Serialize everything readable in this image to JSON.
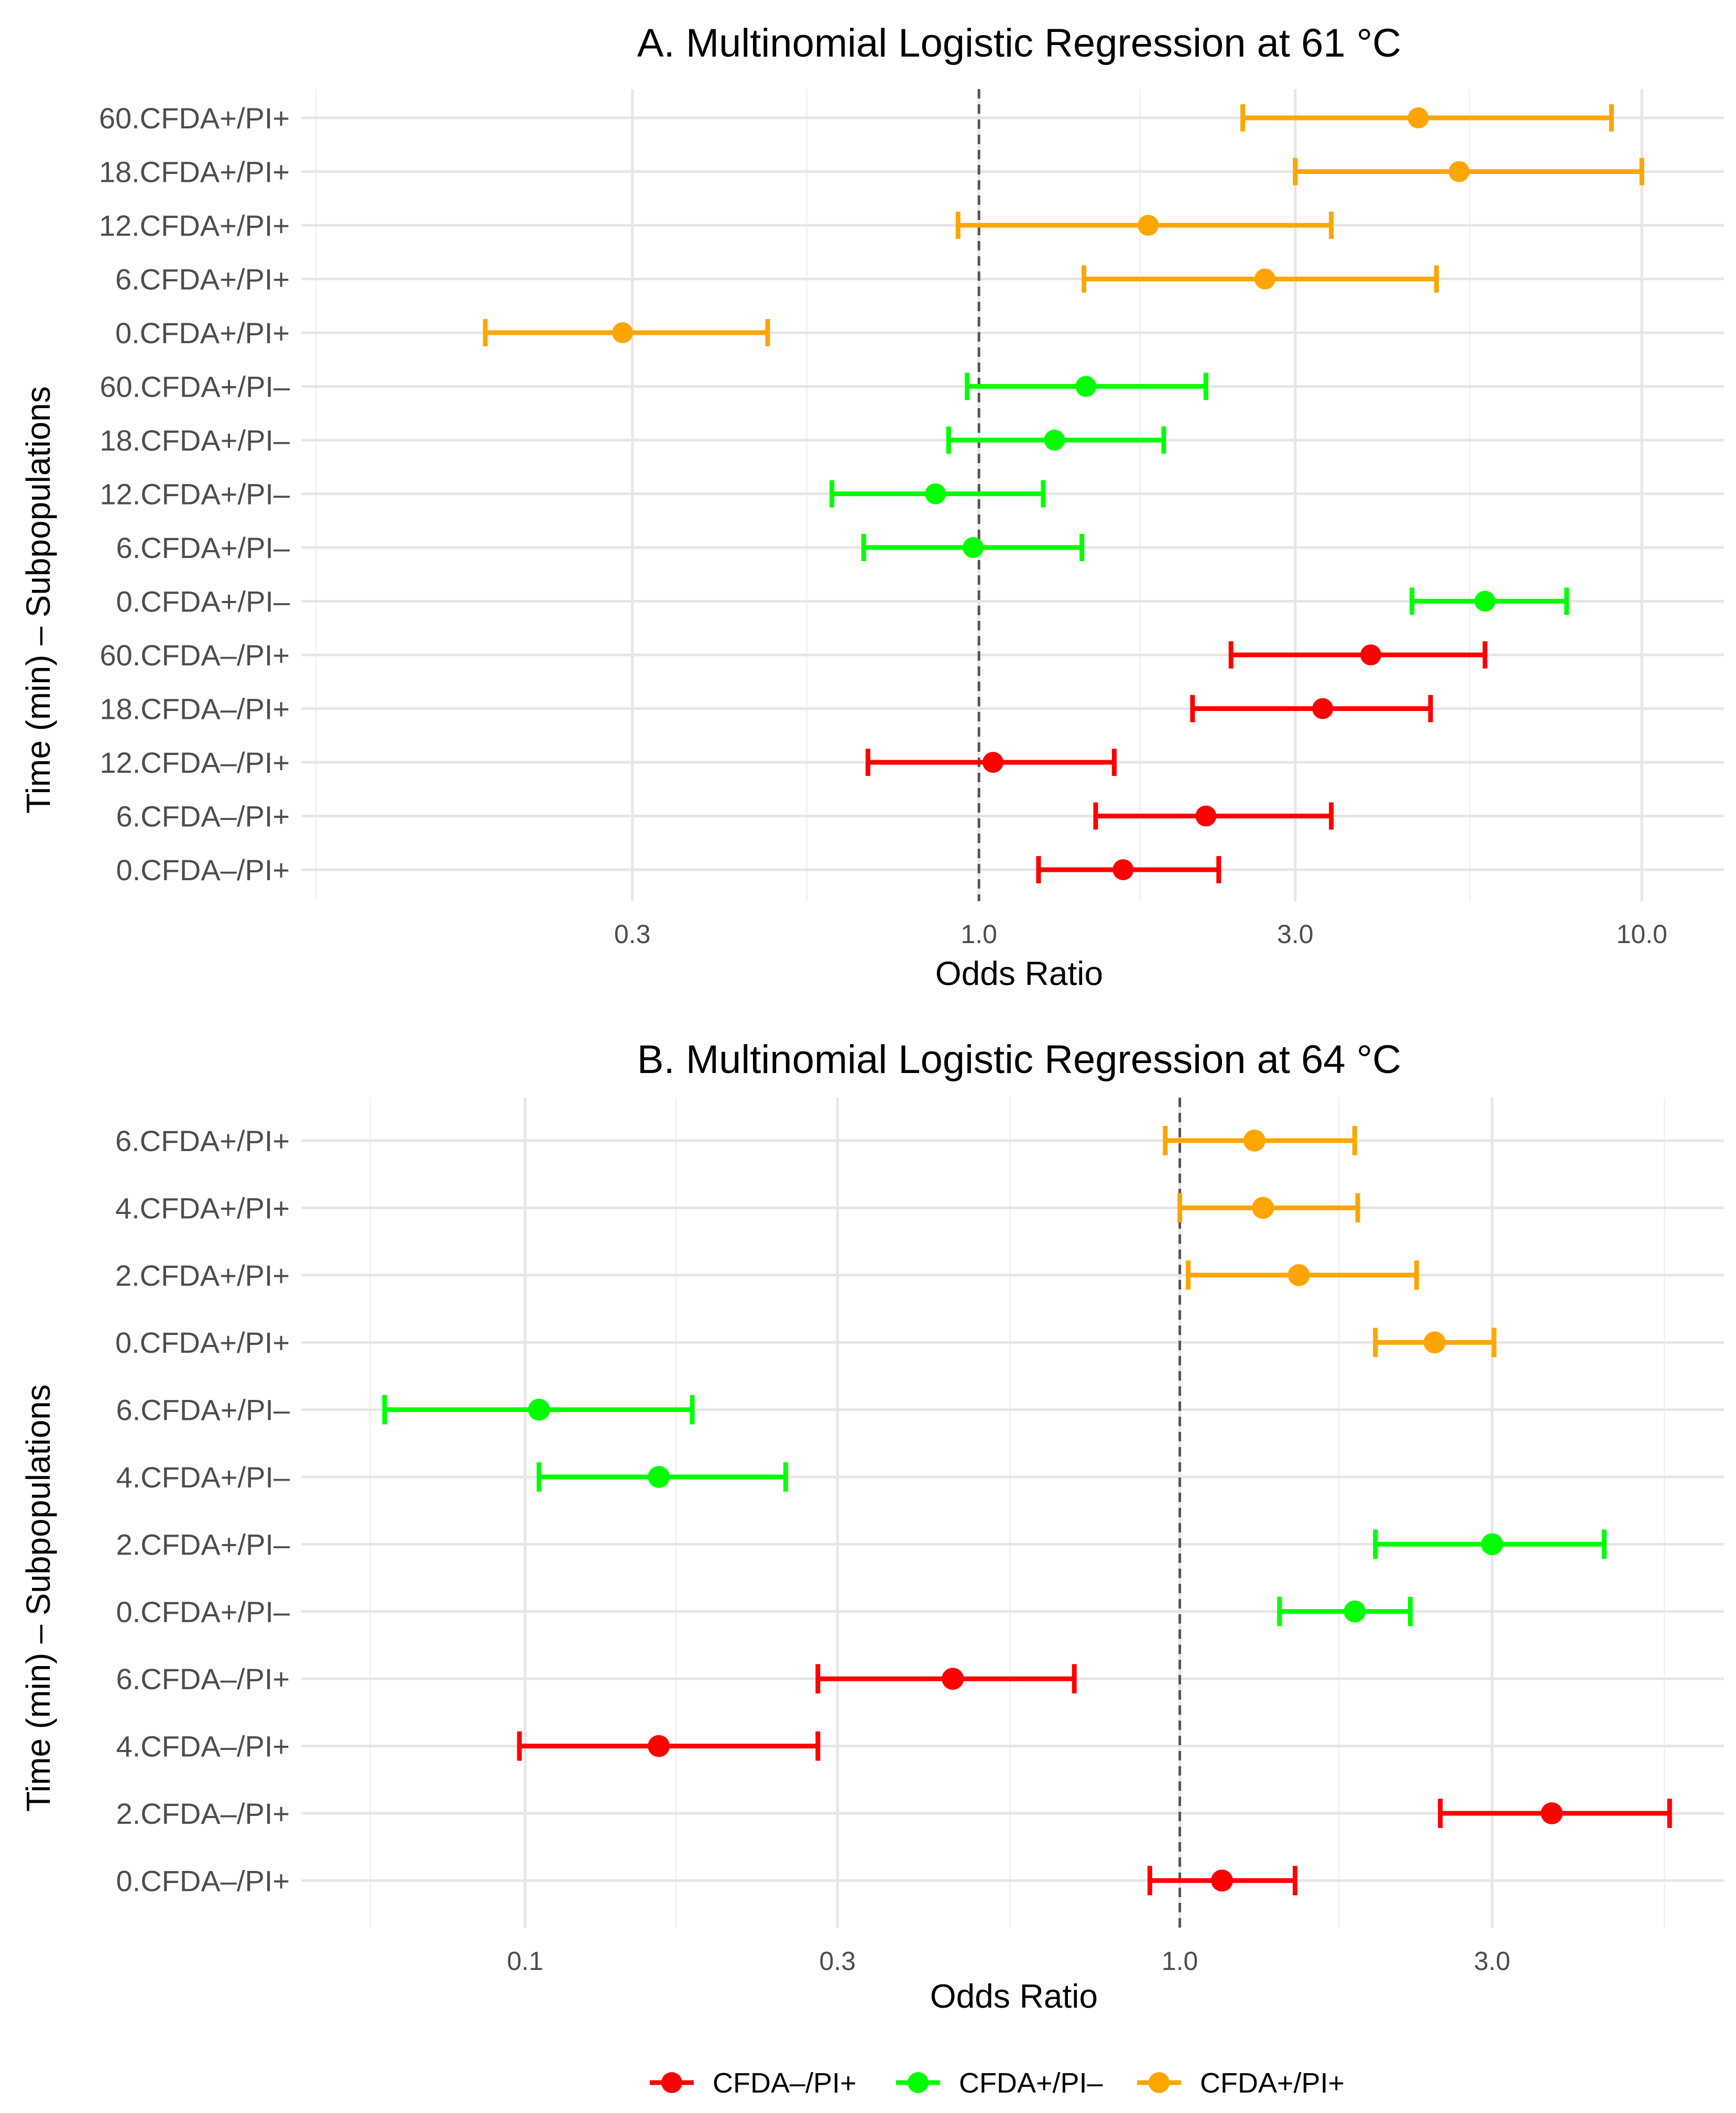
{
  "colors": {
    "CFDA-/PI+": "#ff0000",
    "CFDA+/PI-": "#00ff00",
    "CFDA+/PI+": "#ffa500",
    "grid_major": "#e6e6e6",
    "grid_minor": "#f2f2f2",
    "ref_line": "#555555"
  },
  "legend": {
    "items": [
      {
        "label": "CFDA–/PI+",
        "group": "CFDA-/PI+"
      },
      {
        "label": "CFDA+/PI–",
        "group": "CFDA+/PI-"
      },
      {
        "label": "CFDA+/PI+",
        "group": "CFDA+/PI+"
      }
    ]
  },
  "chart_data": [
    {
      "type": "forest",
      "title": "A.  Multinomial Logistic Regression at 61 °C",
      "xlabel": "Odds Ratio",
      "ylabel": "Time (min) – Subpopulations",
      "x_scale": "log10",
      "xlim": [
        0.095,
        13.3
      ],
      "xticks": [
        0.3,
        1.0,
        3.0,
        10.0
      ],
      "xtick_labels": [
        "0.3",
        "1.0",
        "3.0",
        "10.0"
      ],
      "minor_ticks": [
        0.1,
        0.55,
        1.75,
        5.5
      ],
      "reference_line": 1.0,
      "rows": [
        {
          "label": "60.CFDA+/PI+",
          "group": "CFDA+/PI+",
          "or": 4.6,
          "lo": 2.5,
          "hi": 9.0
        },
        {
          "label": "18.CFDA+/PI+",
          "group": "CFDA+/PI+",
          "or": 5.3,
          "lo": 3.0,
          "hi": 10.0
        },
        {
          "label": "12.CFDA+/PI+",
          "group": "CFDA+/PI+",
          "or": 1.8,
          "lo": 0.93,
          "hi": 3.4
        },
        {
          "label": "6.CFDA+/PI+",
          "group": "CFDA+/PI+",
          "or": 2.7,
          "lo": 1.44,
          "hi": 4.9
        },
        {
          "label": "0.CFDA+/PI+",
          "group": "CFDA+/PI+",
          "or": 0.29,
          "lo": 0.18,
          "hi": 0.48
        },
        {
          "label": "60.CFDA+/PI–",
          "group": "CFDA+/PI-",
          "or": 1.45,
          "lo": 0.96,
          "hi": 2.2
        },
        {
          "label": "18.CFDA+/PI–",
          "group": "CFDA+/PI-",
          "or": 1.3,
          "lo": 0.9,
          "hi": 1.9
        },
        {
          "label": "12.CFDA+/PI–",
          "group": "CFDA+/PI-",
          "or": 0.86,
          "lo": 0.6,
          "hi": 1.25
        },
        {
          "label": "6.CFDA+/PI–",
          "group": "CFDA+/PI-",
          "or": 0.98,
          "lo": 0.67,
          "hi": 1.43
        },
        {
          "label": "0.CFDA+/PI–",
          "group": "CFDA+/PI-",
          "or": 5.8,
          "lo": 4.5,
          "hi": 7.7
        },
        {
          "label": "60.CFDA–/PI+",
          "group": "CFDA-/PI+",
          "or": 3.9,
          "lo": 2.4,
          "hi": 5.8
        },
        {
          "label": "18.CFDA–/PI+",
          "group": "CFDA-/PI+",
          "or": 3.3,
          "lo": 2.1,
          "hi": 4.8
        },
        {
          "label": "12.CFDA–/PI+",
          "group": "CFDA-/PI+",
          "or": 1.05,
          "lo": 0.68,
          "hi": 1.6
        },
        {
          "label": "6.CFDA–/PI+",
          "group": "CFDA-/PI+",
          "or": 2.2,
          "lo": 1.5,
          "hi": 3.4
        },
        {
          "label": "0.CFDA–/PI+",
          "group": "CFDA-/PI+",
          "or": 1.65,
          "lo": 1.23,
          "hi": 2.3
        }
      ]
    },
    {
      "type": "forest",
      "title": "B.  Multinomial Logistic Regression at 64 °C",
      "xlabel": "Odds Ratio",
      "ylabel": "Time (min) – Subpopulations",
      "x_scale": "log10",
      "xlim": [
        0.0455,
        6.78
      ],
      "xticks": [
        0.1,
        0.3,
        1.0,
        3.0
      ],
      "xtick_labels": [
        "0.1",
        "0.3",
        "1.0",
        "3.0"
      ],
      "minor_ticks": [
        0.058,
        0.17,
        0.55,
        1.75,
        5.5
      ],
      "reference_line": 1.0,
      "rows": [
        {
          "label": "6.CFDA+/PI+",
          "group": "CFDA+/PI+",
          "or": 1.3,
          "lo": 0.95,
          "hi": 1.85
        },
        {
          "label": "4.CFDA+/PI+",
          "group": "CFDA+/PI+",
          "or": 1.34,
          "lo": 1.0,
          "hi": 1.87
        },
        {
          "label": "2.CFDA+/PI+",
          "group": "CFDA+/PI+",
          "or": 1.52,
          "lo": 1.03,
          "hi": 2.3
        },
        {
          "label": "0.CFDA+/PI+",
          "group": "CFDA+/PI+",
          "or": 2.45,
          "lo": 1.99,
          "hi": 3.02
        },
        {
          "label": "6.CFDA+/PI–",
          "group": "CFDA+/PI-",
          "or": 0.105,
          "lo": 0.061,
          "hi": 0.18
        },
        {
          "label": "4.CFDA+/PI–",
          "group": "CFDA+/PI-",
          "or": 0.16,
          "lo": 0.105,
          "hi": 0.25
        },
        {
          "label": "2.CFDA+/PI–",
          "group": "CFDA+/PI-",
          "or": 3.0,
          "lo": 1.99,
          "hi": 4.45
        },
        {
          "label": "0.CFDA+/PI–",
          "group": "CFDA+/PI-",
          "or": 1.85,
          "lo": 1.42,
          "hi": 2.25
        },
        {
          "label": "6.CFDA–/PI+",
          "group": "CFDA-/PI+",
          "or": 0.45,
          "lo": 0.28,
          "hi": 0.69
        },
        {
          "label": "4.CFDA–/PI+",
          "group": "CFDA-/PI+",
          "or": 0.16,
          "lo": 0.098,
          "hi": 0.28
        },
        {
          "label": "2.CFDA–/PI+",
          "group": "CFDA-/PI+",
          "or": 3.7,
          "lo": 2.5,
          "hi": 5.6
        },
        {
          "label": "0.CFDA–/PI+",
          "group": "CFDA-/PI+",
          "or": 1.16,
          "lo": 0.9,
          "hi": 1.5
        }
      ]
    }
  ]
}
